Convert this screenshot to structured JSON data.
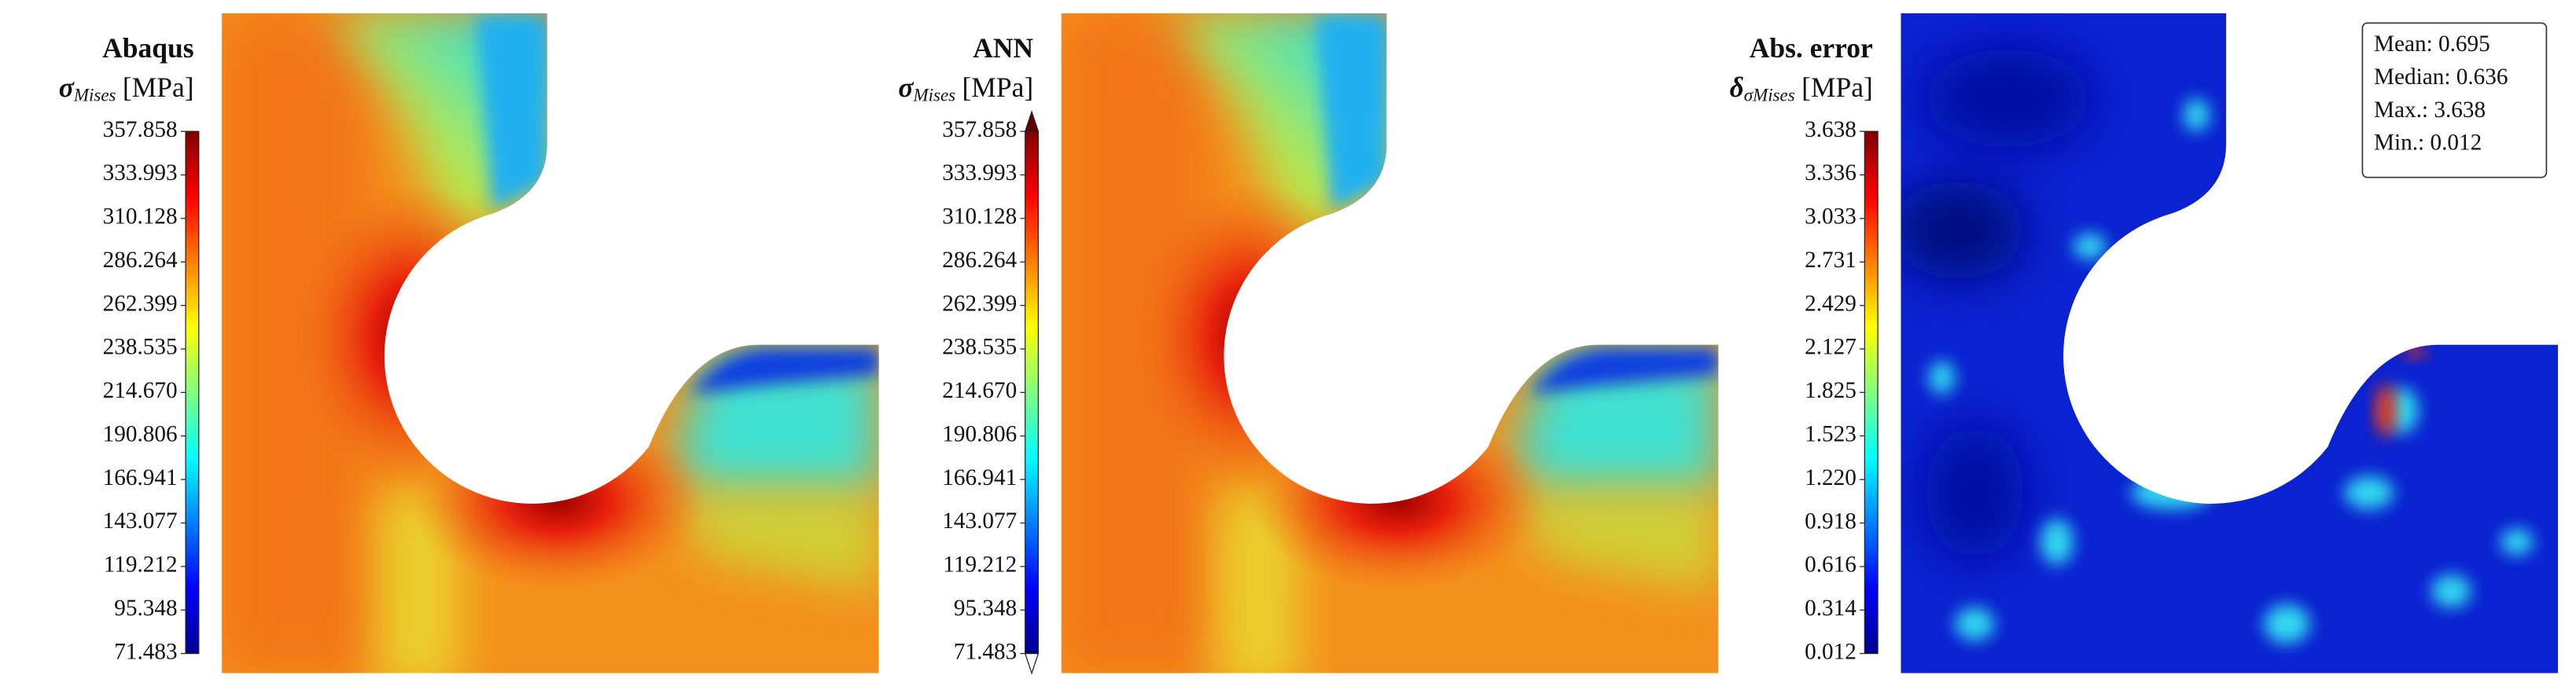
{
  "chart_data": [
    {
      "type": "contour",
      "title": "Abaqus",
      "label": "σ",
      "label_sub": "Mises",
      "label_unit": "[MPa]",
      "field": "stress",
      "clim": [
        71.483,
        357.858
      ],
      "cticks": [
        71.483,
        95.348,
        119.212,
        143.077,
        166.941,
        190.806,
        {
          "value": 214.67,
          "label": "214.670"
        },
        238.535,
        262.399,
        286.264,
        310.128,
        333.993,
        357.858
      ]
    },
    {
      "type": "contour",
      "title": "ANN",
      "label": "σ",
      "label_sub": "Mises",
      "label_unit": "[MPa]",
      "field": "stress",
      "colorbar_extend": "both",
      "clim": [
        71.483,
        357.858
      ],
      "cticks": [
        71.483,
        95.348,
        119.212,
        143.077,
        166.941,
        190.806,
        {
          "value": 214.67,
          "label": "214.670"
        },
        238.535,
        262.399,
        286.264,
        310.128,
        333.993,
        357.858
      ]
    },
    {
      "type": "contour",
      "title": "Abs. error",
      "label": "δ",
      "label_sub": "σMises",
      "label_unit": "[MPa]",
      "field": "error",
      "clim": [
        0.012,
        3.638
      ],
      "cticks": [
        0.012,
        0.314,
        0.616,
        0.918,
        {
          "value": 1.22,
          "label": "1.220"
        },
        1.523,
        1.825,
        2.127,
        2.429,
        2.731,
        3.033,
        3.336,
        3.638
      ],
      "annotations": [
        "Mean: 0.695",
        "Median: 0.636",
        "Max.: 3.638",
        "Min.: 0.012"
      ]
    }
  ]
}
